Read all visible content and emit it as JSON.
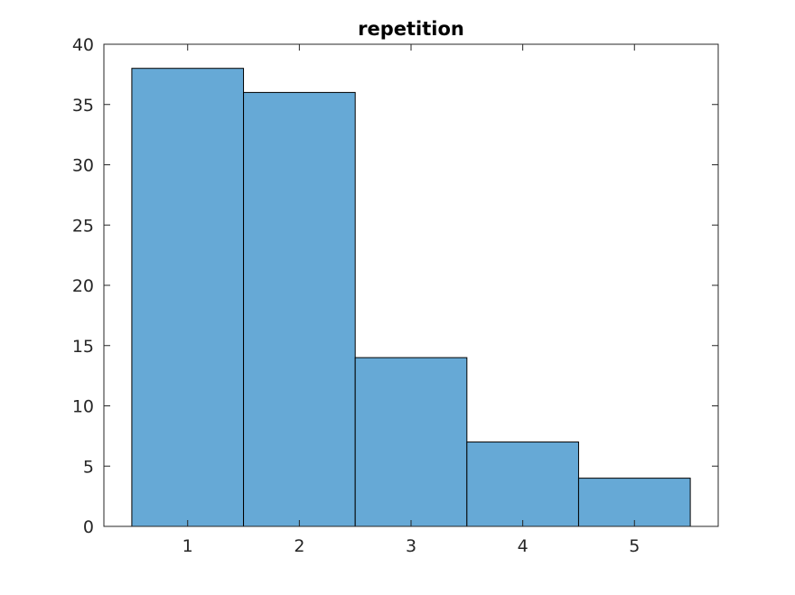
{
  "chart_data": {
    "type": "bar",
    "title": "repetition",
    "xlabel": "",
    "ylabel": "",
    "categories": [
      "1",
      "2",
      "3",
      "4",
      "5"
    ],
    "values": [
      38,
      36,
      14,
      7,
      4
    ],
    "xlim": [
      0.25,
      5.75
    ],
    "ylim": [
      0,
      40
    ],
    "yticks": [
      0,
      5,
      10,
      15,
      20,
      25,
      30,
      35,
      40
    ],
    "xticks": [
      1,
      2,
      3,
      4,
      5
    ],
    "bar_color": "#66A9D6",
    "bar_edge_color": "#000000",
    "grid": false,
    "legend": "none"
  }
}
